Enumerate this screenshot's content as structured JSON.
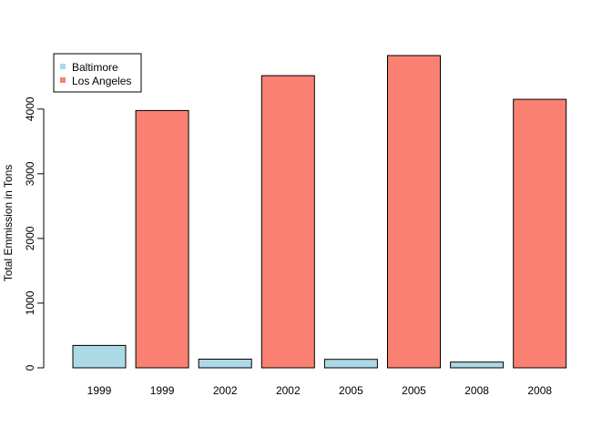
{
  "chart_data": {
    "type": "bar",
    "categories": [
      "1999",
      "1999",
      "2002",
      "2002",
      "2005",
      "2005",
      "2008",
      "2008"
    ],
    "values": [
      346.82,
      3977.45,
      134.31,
      4516.2,
      130.43,
      4827.53,
      88.28,
      4151.24
    ],
    "series_of_bar": [
      "Baltimore",
      "Los Angeles",
      "Baltimore",
      "Los Angeles",
      "Baltimore",
      "Los Angeles",
      "Baltimore",
      "Los Angeles"
    ],
    "ylabel": "Total Emmission in Tons",
    "xlabel": "",
    "title": "",
    "ylim": [
      0,
      5000
    ],
    "yticks": [
      0,
      1000,
      2000,
      3000,
      4000
    ],
    "grid": false,
    "legend_position": "top-left",
    "legend": [
      {
        "name": "Baltimore",
        "color": "#add8e6"
      },
      {
        "name": "Los Angeles",
        "color": "#fa8072"
      }
    ]
  }
}
